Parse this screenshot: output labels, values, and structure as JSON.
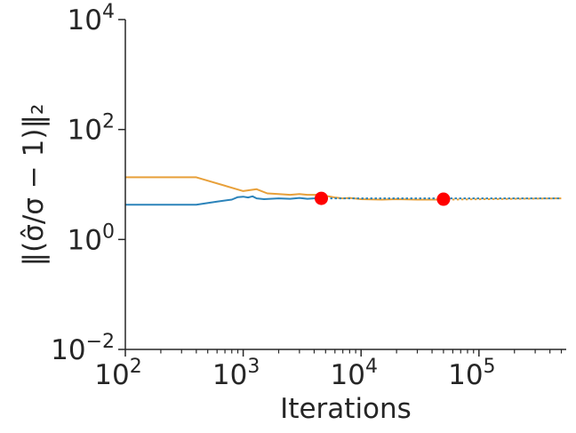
{
  "chart_data": {
    "type": "line",
    "xlabel": "Iterations",
    "ylabel": "‖(σ̂/σ − 1)‖₂",
    "xscale": "log",
    "yscale": "log",
    "xlim": [
      100,
      550000
    ],
    "ylim": [
      0.01,
      10000
    ],
    "grid": false,
    "legend": "none",
    "x_ticks": [
      {
        "value": 100,
        "base": "10",
        "exp": "2"
      },
      {
        "value": 1000,
        "base": "10",
        "exp": "3"
      },
      {
        "value": 10000,
        "base": "10",
        "exp": "4"
      },
      {
        "value": 100000,
        "base": "10",
        "exp": "5"
      }
    ],
    "y_ticks": [
      {
        "value": 0.01,
        "base": "10",
        "exp": "−2"
      },
      {
        "value": 1,
        "base": "10",
        "exp": "0"
      },
      {
        "value": 100,
        "base": "10",
        "exp": "2"
      },
      {
        "value": 10000,
        "base": "10",
        "exp": "4"
      }
    ],
    "series": [
      {
        "color": "#2b83ba",
        "style": "solid",
        "points": [
          [
            100,
            4.3
          ],
          [
            400,
            4.3
          ],
          [
            600,
            4.9
          ],
          [
            800,
            5.3
          ],
          [
            900,
            5.9
          ],
          [
            1000,
            6.0
          ],
          [
            1100,
            5.8
          ],
          [
            1200,
            6.1
          ],
          [
            1300,
            5.6
          ],
          [
            1500,
            5.4
          ],
          [
            2000,
            5.6
          ],
          [
            2500,
            5.5
          ],
          [
            3000,
            5.7
          ],
          [
            3500,
            5.5
          ],
          [
            4000,
            5.6
          ],
          [
            4600,
            5.6
          ]
        ]
      },
      {
        "color": "#e8a03a",
        "style": "solid",
        "points": [
          [
            100,
            13.5
          ],
          [
            400,
            13.5
          ],
          [
            1000,
            7.6
          ],
          [
            1300,
            8.2
          ],
          [
            1600,
            6.9
          ],
          [
            2000,
            6.7
          ],
          [
            2500,
            6.5
          ],
          [
            3000,
            6.7
          ],
          [
            3500,
            6.5
          ],
          [
            4500,
            6.5
          ],
          [
            6000,
            5.8
          ],
          [
            7000,
            5.6
          ],
          [
            8000,
            5.7
          ],
          [
            10000,
            5.4
          ],
          [
            15000,
            5.3
          ],
          [
            20000,
            5.4
          ],
          [
            30000,
            5.3
          ],
          [
            50000,
            5.3
          ]
        ]
      },
      {
        "color": "#2b83ba",
        "style": "dotted",
        "points": [
          [
            4600,
            5.6
          ],
          [
            500000,
            5.6
          ]
        ]
      },
      {
        "color": "#e8a03a",
        "style": "dotted",
        "points": [
          [
            50000,
            5.3
          ],
          [
            500000,
            5.6
          ]
        ]
      }
    ],
    "markers": [
      {
        "x": 4600,
        "y": 5.6,
        "color": "#ff0000"
      },
      {
        "x": 50000,
        "y": 5.4,
        "color": "#ff0000"
      }
    ]
  }
}
